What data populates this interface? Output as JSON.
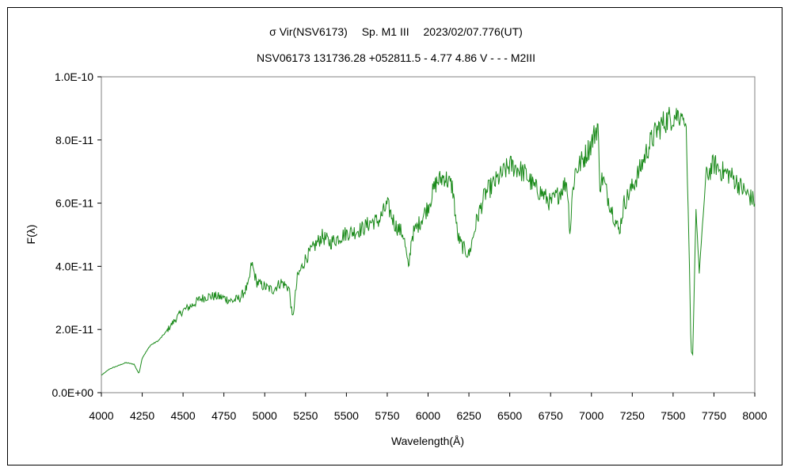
{
  "chart_data": {
    "type": "line",
    "title": "σ Vir(NSV6173)　 Sp. M1 III　 2023/02/07.776(UT)",
    "subtitle": "NSV06173 131736.28 +052811.5 - 4.77 4.86 V - - - M2III",
    "xlabel": "Wavelength(Å)",
    "ylabel": "F(λ)",
    "xlim": [
      4000,
      8000
    ],
    "ylim": [
      0,
      1e-10
    ],
    "x_ticks": [
      "4000",
      "4250",
      "4500",
      "4750",
      "5000",
      "5250",
      "5500",
      "5750",
      "6000",
      "6250",
      "6500",
      "6750",
      "7000",
      "7250",
      "7500",
      "7750",
      "8000"
    ],
    "y_ticks": [
      "0.0E+00",
      "2.0E-11",
      "4.0E-11",
      "6.0E-11",
      "8.0E-11",
      "1.0E-10"
    ],
    "grid": false,
    "line_color": "#1a8a1a",
    "series": [
      {
        "x": [
          4000,
          4050,
          4100,
          4150,
          4200,
          4230,
          4250,
          4300,
          4350,
          4400,
          4450,
          4500,
          4550,
          4600,
          4650,
          4700,
          4750,
          4800,
          4850,
          4900,
          4920,
          4950,
          5000,
          5050,
          5100,
          5150,
          5170,
          5200,
          5250,
          5300,
          5350,
          5400,
          5450,
          5500,
          5550,
          5600,
          5650,
          5700,
          5750,
          5800,
          5850,
          5880,
          5900,
          5950,
          6000,
          6050,
          6100,
          6150,
          6180,
          6200,
          6250,
          6300,
          6350,
          6400,
          6450,
          6500,
          6550,
          6600,
          6650,
          6700,
          6750,
          6800,
          6850,
          6870,
          6880,
          6900,
          6950,
          7000,
          7040,
          7050,
          7070,
          7100,
          7150,
          7170,
          7200,
          7250,
          7300,
          7350,
          7400,
          7450,
          7500,
          7550,
          7580,
          7600,
          7610,
          7620,
          7640,
          7660,
          7700,
          7750,
          7800,
          7850,
          7900,
          7950,
          8000
        ],
        "y": [
          5.5e-12,
          7.5e-12,
          8.5e-12,
          9.5e-12,
          9e-12,
          6e-12,
          1.1e-11,
          1.5e-11,
          1.65e-11,
          1.95e-11,
          2.3e-11,
          2.6e-11,
          2.75e-11,
          2.95e-11,
          3.05e-11,
          3.05e-11,
          3e-11,
          2.9e-11,
          3e-11,
          3.4e-11,
          4.1e-11,
          3.5e-11,
          3.35e-11,
          3.25e-11,
          3.5e-11,
          3.3e-11,
          2.3e-11,
          3.65e-11,
          4.25e-11,
          4.6e-11,
          4.95e-11,
          4.75e-11,
          4.9e-11,
          5.05e-11,
          5.1e-11,
          5.2e-11,
          5.4e-11,
          5.45e-11,
          5.95e-11,
          5.3e-11,
          5e-11,
          3.9e-11,
          4.95e-11,
          5.4e-11,
          5.9e-11,
          6.65e-11,
          6.85e-11,
          6.5e-11,
          5e-11,
          4.7e-11,
          4.35e-11,
          5.5e-11,
          6.3e-11,
          6.6e-11,
          6.9e-11,
          7.2e-11,
          7.1e-11,
          6.9e-11,
          6.5e-11,
          6.3e-11,
          6e-11,
          6.3e-11,
          6.7e-11,
          5e-11,
          6.1e-11,
          7e-11,
          7.4e-11,
          7.9e-11,
          8.5e-11,
          6.6e-11,
          6.8e-11,
          6.2e-11,
          5.4e-11,
          5.1e-11,
          6e-11,
          6.5e-11,
          7.1e-11,
          7.8e-11,
          8.3e-11,
          8.6e-11,
          8.75e-11,
          8.85e-11,
          8.4e-11,
          4e-11,
          1.3e-11,
          1.2e-11,
          5.8e-11,
          3.8e-11,
          6.8e-11,
          7.25e-11,
          7e-11,
          6.9e-11,
          6.6e-11,
          6.3e-11,
          6.05e-11
        ]
      }
    ]
  }
}
